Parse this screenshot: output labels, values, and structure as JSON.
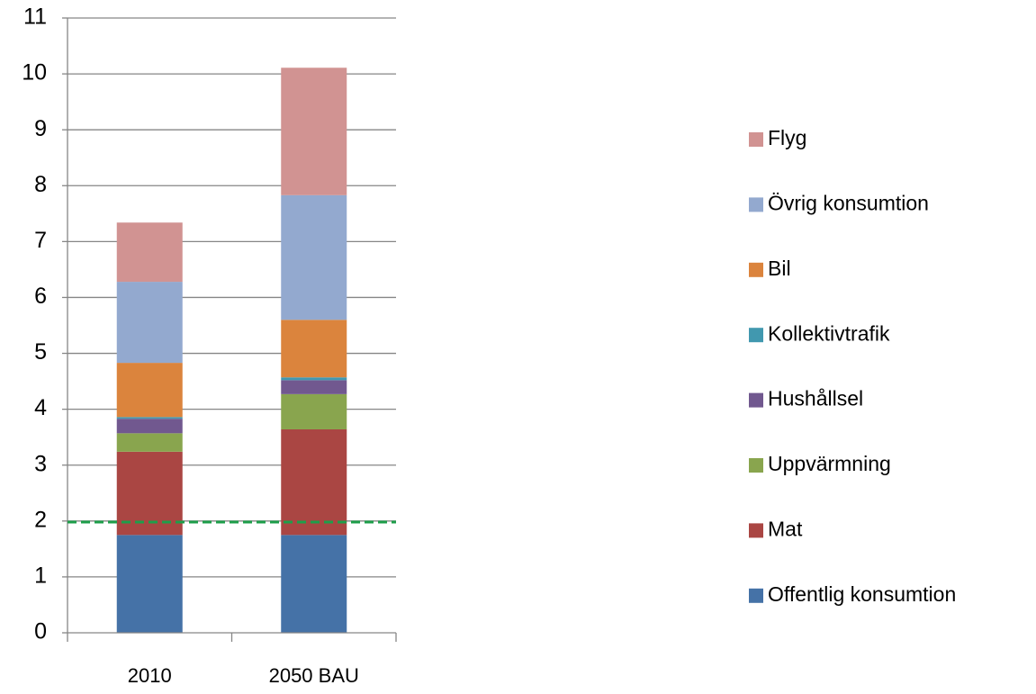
{
  "chart_data": {
    "type": "stacked_bar",
    "categories": [
      "2010",
      "2050 BAU"
    ],
    "series": [
      {
        "name": "Offentlig konsumtion",
        "color": "#4572a7",
        "values": [
          1.75,
          1.75
        ]
      },
      {
        "name": "Mat",
        "color": "#aa4643",
        "values": [
          1.49,
          1.89
        ]
      },
      {
        "name": "Uppvärmning",
        "color": "#89a54e",
        "values": [
          0.33,
          0.63
        ]
      },
      {
        "name": "Hushållsel",
        "color": "#71588f",
        "values": [
          0.26,
          0.25
        ]
      },
      {
        "name": "Kollektivtrafik",
        "color": "#4198af",
        "values": [
          0.03,
          0.05
        ]
      },
      {
        "name": "Bil",
        "color": "#db843d",
        "values": [
          0.97,
          1.03
        ]
      },
      {
        "name": "Övrig konsumtion",
        "color": "#93a9cf",
        "values": [
          1.45,
          2.23
        ]
      },
      {
        "name": "Flyg",
        "color": "#d19392",
        "values": [
          1.06,
          2.28
        ]
      }
    ],
    "ylim": [
      0,
      11
    ],
    "yticks": [
      0,
      1,
      2,
      3,
      4,
      5,
      6,
      7,
      8,
      9,
      10,
      11
    ],
    "grid": true,
    "legend": "right",
    "reference_line": {
      "value": 1.98,
      "color": "#1e9e4a"
    }
  }
}
